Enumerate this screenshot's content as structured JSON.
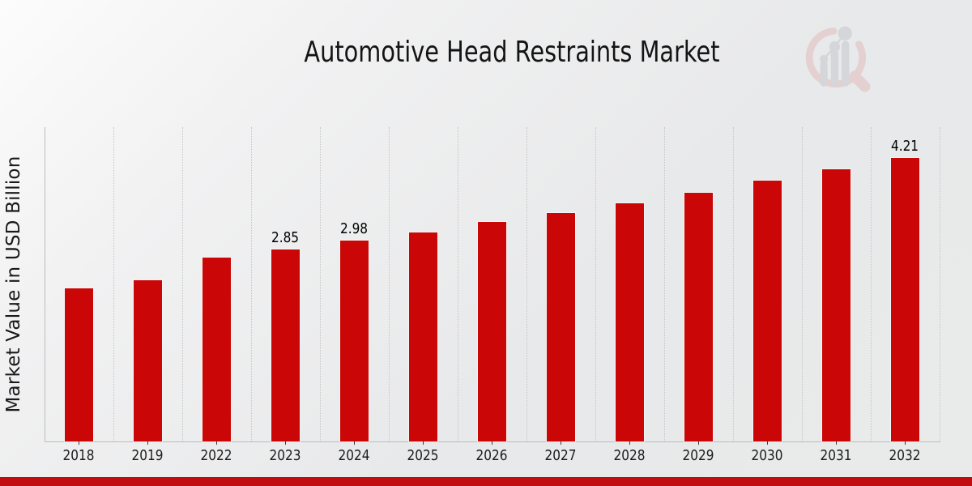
{
  "page": {
    "footer_color": "#c20d10",
    "background_from": "#fcfcfc",
    "background_to": "#e8e9ea"
  },
  "logo": {
    "name": "market-research-future-watermark",
    "ring_color": "#e2bcbe",
    "glyph_color": "#c6c8cc"
  },
  "chart_data": {
    "type": "bar",
    "title": "Automotive Head Restraints Market",
    "xlabel": "",
    "ylabel": "Market Value in USD Billion",
    "categories": [
      "2018",
      "2019",
      "2022",
      "2023",
      "2024",
      "2025",
      "2026",
      "2027",
      "2028",
      "2029",
      "2030",
      "2031",
      "2032"
    ],
    "values": [
      2.27,
      2.4,
      2.73,
      2.85,
      2.98,
      3.11,
      3.26,
      3.39,
      3.54,
      3.7,
      3.87,
      4.04,
      4.21
    ],
    "bar_labels": [
      "",
      "",
      "",
      "2.85",
      "2.98",
      "",
      "",
      "",
      "",
      "",
      "",
      "",
      "4.21"
    ],
    "bar_color": "#cb0606",
    "ylim": [
      0,
      4.67
    ],
    "grid": "vertical-dotted",
    "legend": "none",
    "axis_color": "#bcbcbc",
    "gridline_color": "#c6c6c6",
    "tick_color": "#3a3a3a"
  }
}
